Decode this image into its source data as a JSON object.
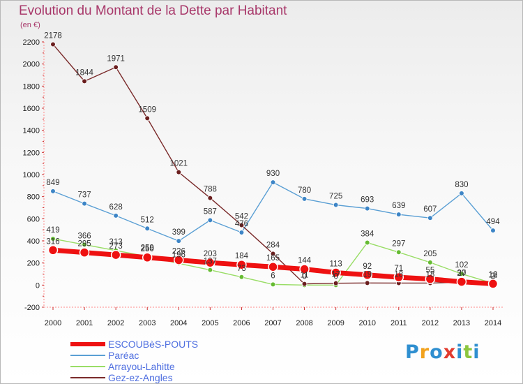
{
  "chart_data": {
    "type": "line",
    "title": "Evolution du Montant de la Dette par Habitant",
    "unit_label": "(en €)",
    "x": [
      "2000",
      "2001",
      "2002",
      "2003",
      "2004",
      "2005",
      "2006",
      "2007",
      "2008",
      "2009",
      "2010",
      "2011",
      "2012",
      "2013",
      "2014"
    ],
    "ylim": [
      -200,
      2200
    ],
    "yticks": [
      -200,
      0,
      200,
      400,
      600,
      800,
      1000,
      1200,
      1400,
      1600,
      1800,
      2000,
      2200
    ],
    "grid": false,
    "legend_position": "bottom-left",
    "series": [
      {
        "name": "ESCOUBèS-POUTS",
        "color": "#ee1111",
        "point_color": "#ee1111",
        "values": [
          316,
          295,
          273,
          250,
          226,
          203,
          184,
          165,
          144,
          113,
          92,
          71,
          55,
          30,
          12
        ]
      },
      {
        "name": "Paréac",
        "color": "#5a9fd4",
        "point_color": "#3d85c6",
        "values": [
          849,
          737,
          628,
          512,
          399,
          587,
          476,
          930,
          780,
          725,
          693,
          639,
          607,
          830,
          494
        ]
      },
      {
        "name": "Arrayou-Lahitte",
        "color": "#99dd66",
        "point_color": "#66bb33",
        "values": [
          419,
          366,
          313,
          259,
          196,
          137,
          73,
          6,
          0,
          0,
          384,
          297,
          205,
          102,
          16
        ]
      },
      {
        "name": "Gez-ez-Angles",
        "color": "#7a2a2a",
        "point_color": "#6a1e1e",
        "values": [
          2178,
          1844,
          1971,
          1509,
          1021,
          788,
          542,
          284,
          11,
          17,
          19,
          18,
          18,
          27,
          2
        ]
      }
    ]
  },
  "logo": {
    "text": "Proxiti",
    "letters": [
      "P",
      "r",
      "o",
      "x",
      "i",
      "t",
      "i"
    ]
  }
}
